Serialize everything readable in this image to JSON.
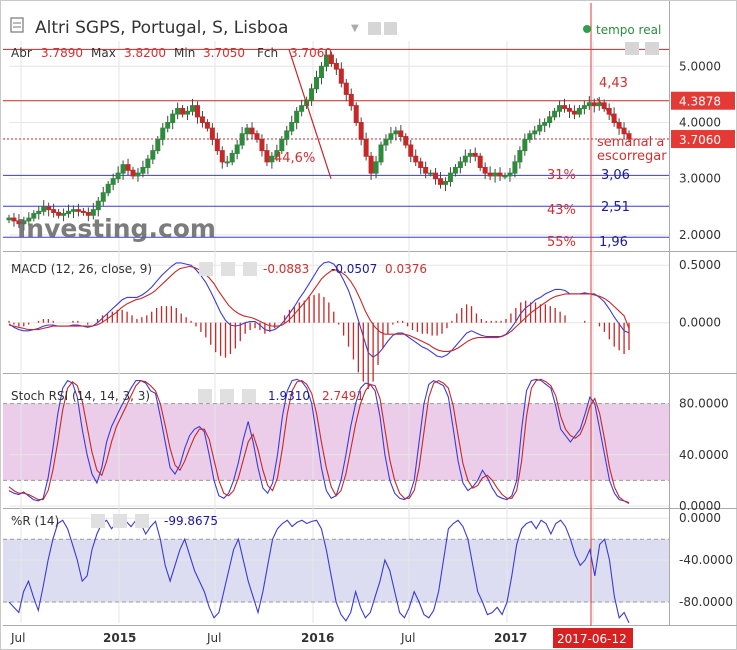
{
  "header": {
    "title": "Altri SGPS, Portugal, S, Lisboa",
    "live_label": "tempo real",
    "ohlc": [
      {
        "label": "Abr",
        "value": "3.7890"
      },
      {
        "label": "Max",
        "value": "3.8200"
      },
      {
        "label": "Min",
        "value": "3.7050"
      },
      {
        "label": "Fch",
        "value": "3.7060"
      }
    ],
    "watermark": "Investing.com"
  },
  "colors": {
    "up": "#2e8b3c",
    "down": "#c62828",
    "accent_red": "#e53935",
    "blue": "#3b3bd6",
    "grid": "#e6e6e6",
    "stoch_band": "#e7c4e6",
    "wr_band": "#d6d6f0"
  },
  "x_axis": {
    "labels": [
      "Jul",
      "2015",
      "Jul",
      "2016",
      "Jul",
      "2017",
      "2017-06-12"
    ],
    "current_date": "2017-06-12"
  },
  "chart_data": [
    {
      "type": "candlestick",
      "name": "price",
      "ylim": [
        1.75,
        5.45
      ],
      "y_ticks": [
        "5.0000",
        "4.0000",
        "3.0000",
        "2.0000"
      ],
      "y_tick_values": [
        5,
        4,
        3,
        2
      ],
      "tag_labels": [
        "4.3878",
        "3.7060"
      ],
      "tag_values": [
        4.3878,
        3.706
      ],
      "last_close": 3.706,
      "horizontal_lines": [
        {
          "value": 5.3,
          "color": "red"
        },
        {
          "value": 4.3878,
          "color": "red"
        },
        {
          "value": 3.06,
          "color": "blue"
        },
        {
          "value": 2.51,
          "color": "blue"
        },
        {
          "value": 1.96,
          "color": "blue"
        }
      ],
      "annotations": [
        {
          "text": "44,6%",
          "color": "red"
        },
        {
          "text": "4,43",
          "color": "red"
        },
        {
          "text": "semanal a",
          "color": "red"
        },
        {
          "text": "escorregar",
          "color": "red"
        },
        {
          "text": "31%",
          "color": "red"
        },
        {
          "text": "3,06",
          "color": "blue"
        },
        {
          "text": "43%",
          "color": "red"
        },
        {
          "text": "2,51",
          "color": "blue"
        },
        {
          "text": "55%",
          "color": "red"
        },
        {
          "text": "1,96",
          "color": "blue"
        }
      ],
      "trendlines": [
        {
          "from": [
            "2015-11",
            5.3
          ],
          "to": [
            "2016-01",
            3.0
          ],
          "color": "red"
        },
        {
          "from": [
            "2017-05",
            4.43
          ],
          "to": [
            "2017-06-12",
            3.706
          ],
          "color": "red"
        }
      ],
      "closes": [
        2.3,
        2.25,
        2.2,
        2.25,
        2.3,
        2.38,
        2.42,
        2.5,
        2.45,
        2.4,
        2.35,
        2.38,
        2.42,
        2.45,
        2.42,
        2.4,
        2.35,
        2.45,
        2.6,
        2.75,
        2.9,
        3.0,
        3.1,
        3.25,
        3.15,
        3.05,
        3.1,
        3.2,
        3.35,
        3.5,
        3.7,
        3.9,
        4.0,
        4.15,
        4.25,
        4.15,
        4.2,
        4.3,
        4.1,
        4.0,
        3.9,
        3.7,
        3.5,
        3.3,
        3.3,
        3.45,
        3.6,
        3.8,
        3.9,
        3.8,
        3.7,
        3.5,
        3.3,
        3.4,
        3.5,
        3.7,
        3.85,
        4.0,
        4.2,
        4.3,
        4.4,
        4.6,
        4.8,
        5.0,
        5.2,
        5.05,
        4.95,
        4.7,
        4.5,
        4.3,
        4.0,
        3.7,
        3.4,
        3.1,
        3.3,
        3.6,
        3.7,
        3.8,
        3.85,
        3.75,
        3.6,
        3.4,
        3.3,
        3.2,
        3.1,
        3.1,
        3.0,
        2.9,
        2.95,
        3.1,
        3.2,
        3.3,
        3.4,
        3.45,
        3.4,
        3.2,
        3.1,
        3.05,
        3.1,
        3.05,
        3.05,
        3.1,
        3.3,
        3.5,
        3.7,
        3.8,
        3.85,
        3.95,
        4.0,
        4.1,
        4.2,
        4.3,
        4.25,
        4.2,
        4.15,
        4.25,
        4.3,
        4.35,
        4.3,
        4.35,
        4.25,
        4.15,
        4.0,
        3.9,
        3.8,
        3.706
      ]
    },
    {
      "type": "line",
      "name": "MACD",
      "label": "MACD (12, 26, close, 9)",
      "values_text": [
        "-0.0883",
        "-0.0507",
        "0.0376"
      ],
      "ylim": [
        -0.42,
        0.58
      ],
      "y_ticks": [
        "0.5000",
        "0.0000"
      ],
      "y_tick_values": [
        0.5,
        0.0
      ],
      "series": [
        {
          "color": "blue",
          "values": [
            -0.01,
            -0.04,
            -0.06,
            -0.07,
            -0.07,
            -0.06,
            -0.05,
            -0.03,
            -0.02,
            -0.02,
            -0.03,
            -0.03,
            -0.03,
            -0.02,
            -0.02,
            -0.03,
            -0.04,
            -0.03,
            0.0,
            0.04,
            0.08,
            0.12,
            0.16,
            0.2,
            0.22,
            0.22,
            0.22,
            0.24,
            0.27,
            0.31,
            0.36,
            0.41,
            0.45,
            0.49,
            0.52,
            0.52,
            0.51,
            0.5,
            0.46,
            0.41,
            0.35,
            0.27,
            0.18,
            0.09,
            0.02,
            -0.02,
            -0.03,
            -0.02,
            0.0,
            0.01,
            0.01,
            -0.02,
            -0.06,
            -0.07,
            -0.06,
            -0.03,
            0.02,
            0.08,
            0.14,
            0.21,
            0.27,
            0.34,
            0.41,
            0.48,
            0.52,
            0.53,
            0.51,
            0.45,
            0.37,
            0.28,
            0.16,
            0.02,
            -0.12,
            -0.26,
            -0.3,
            -0.27,
            -0.22,
            -0.16,
            -0.11,
            -0.09,
            -0.09,
            -0.12,
            -0.15,
            -0.18,
            -0.21,
            -0.23,
            -0.26,
            -0.29,
            -0.3,
            -0.28,
            -0.24,
            -0.19,
            -0.14,
            -0.09,
            -0.07,
            -0.09,
            -0.11,
            -0.12,
            -0.12,
            -0.12,
            -0.12,
            -0.1,
            -0.05,
            0.01,
            0.08,
            0.13,
            0.16,
            0.2,
            0.22,
            0.25,
            0.27,
            0.29,
            0.29,
            0.28,
            0.25,
            0.25,
            0.25,
            0.26,
            0.25,
            0.25,
            0.22,
            0.18,
            0.12,
            0.05,
            -0.01,
            -0.07,
            -0.0883
          ]
        },
        {
          "color": "red",
          "values": [
            -0.02,
            -0.03,
            -0.04,
            -0.05,
            -0.06,
            -0.06,
            -0.06,
            -0.05,
            -0.04,
            -0.03,
            -0.03,
            -0.03,
            -0.03,
            -0.03,
            -0.03,
            -0.03,
            -0.03,
            -0.03,
            -0.02,
            0.0,
            0.03,
            0.06,
            0.09,
            0.13,
            0.16,
            0.18,
            0.2,
            0.21,
            0.23,
            0.25,
            0.28,
            0.32,
            0.36,
            0.4,
            0.44,
            0.47,
            0.48,
            0.49,
            0.48,
            0.46,
            0.43,
            0.39,
            0.34,
            0.27,
            0.21,
            0.15,
            0.11,
            0.08,
            0.06,
            0.05,
            0.04,
            0.02,
            0.0,
            -0.02,
            -0.03,
            -0.03,
            -0.02,
            0.01,
            0.05,
            0.1,
            0.15,
            0.2,
            0.26,
            0.32,
            0.38,
            0.42,
            0.45,
            0.46,
            0.44,
            0.41,
            0.36,
            0.29,
            0.2,
            0.1,
            0.02,
            -0.04,
            -0.08,
            -0.1,
            -0.1,
            -0.1,
            -0.1,
            -0.1,
            -0.11,
            -0.13,
            -0.15,
            -0.17,
            -0.19,
            -0.22,
            -0.24,
            -0.25,
            -0.25,
            -0.24,
            -0.22,
            -0.19,
            -0.16,
            -0.14,
            -0.13,
            -0.13,
            -0.13,
            -0.13,
            -0.13,
            -0.12,
            -0.1,
            -0.07,
            -0.03,
            0.01,
            0.05,
            0.09,
            0.12,
            0.15,
            0.18,
            0.21,
            0.23,
            0.24,
            0.25,
            0.25,
            0.25,
            0.25,
            0.25,
            0.25,
            0.24,
            0.23,
            0.21,
            0.18,
            0.14,
            0.1,
            0.06,
            -0.0507
          ]
        }
      ]
    },
    {
      "type": "line",
      "name": "Stoch RSI",
      "label": "Stoch RSI (14, 14, 3, 3)",
      "values_text": [
        "1.9310",
        "2.7491"
      ],
      "ylim": [
        0,
        100
      ],
      "y_ticks": [
        "80.0000",
        "40.0000",
        "0.0000"
      ],
      "y_tick_values": [
        80,
        40,
        0
      ],
      "band": [
        20,
        80
      ],
      "series": [
        {
          "color": "blue",
          "values": [
            12,
            10,
            9,
            11,
            8,
            5,
            4,
            6,
            22,
            45,
            72,
            92,
            98,
            96,
            85,
            60,
            40,
            25,
            18,
            30,
            50,
            62,
            70,
            78,
            85,
            92,
            98,
            98,
            96,
            90,
            88,
            70,
            50,
            30,
            25,
            32,
            45,
            55,
            60,
            62,
            58,
            40,
            20,
            8,
            6,
            10,
            20,
            34,
            52,
            66,
            50,
            30,
            14,
            10,
            18,
            40,
            70,
            90,
            98,
            99,
            97,
            92,
            80,
            55,
            30,
            12,
            6,
            8,
            20,
            40,
            62,
            80,
            92,
            96,
            95,
            90,
            70,
            40,
            20,
            10,
            6,
            5,
            8,
            20,
            50,
            80,
            95,
            98,
            96,
            94,
            85,
            60,
            35,
            18,
            12,
            15,
            20,
            28,
            22,
            14,
            8,
            6,
            5,
            8,
            20,
            60,
            90,
            98,
            99,
            98,
            95,
            92,
            78,
            60,
            55,
            50,
            55,
            60,
            72,
            85,
            80,
            60,
            40,
            20,
            10,
            5,
            4,
            1.931
          ]
        },
        {
          "color": "red",
          "values": [
            15,
            12,
            10,
            10,
            9,
            7,
            5,
            5,
            12,
            28,
            50,
            75,
            92,
            97,
            94,
            82,
            62,
            42,
            28,
            24,
            35,
            50,
            62,
            70,
            78,
            86,
            94,
            98,
            97,
            94,
            90,
            80,
            63,
            45,
            32,
            28,
            35,
            45,
            54,
            60,
            60,
            52,
            36,
            20,
            10,
            8,
            12,
            22,
            36,
            50,
            56,
            44,
            28,
            16,
            12,
            22,
            45,
            72,
            90,
            97,
            98,
            95,
            88,
            72,
            50,
            30,
            15,
            8,
            12,
            25,
            44,
            64,
            80,
            90,
            95,
            94,
            84,
            60,
            36,
            20,
            10,
            6,
            6,
            12,
            30,
            58,
            85,
            96,
            98,
            96,
            92,
            78,
            55,
            33,
            20,
            14,
            16,
            22,
            24,
            20,
            14,
            9,
            6,
            6,
            12,
            35,
            70,
            92,
            98,
            99,
            97,
            94,
            86,
            70,
            60,
            55,
            53,
            56,
            65,
            78,
            84,
            72,
            52,
            30,
            15,
            7,
            4,
            2.7491
          ]
        }
      ]
    },
    {
      "type": "line",
      "name": "%R",
      "label": "%R (14)",
      "values_text": [
        "-99.8675"
      ],
      "ylim": [
        -100,
        5
      ],
      "y_ticks": [
        "0.0000",
        "-40.0000",
        "-80.0000"
      ],
      "y_tick_values": [
        0,
        -40,
        -80
      ],
      "band": [
        -80,
        -20
      ],
      "series": [
        {
          "color": "blue",
          "values": [
            -80,
            -85,
            -90,
            -70,
            -60,
            -75,
            -88,
            -65,
            -40,
            -20,
            -5,
            -2,
            -10,
            -25,
            -40,
            -60,
            -55,
            -30,
            -15,
            -5,
            -2,
            -10,
            -5,
            -2,
            -3,
            -8,
            -2,
            -5,
            -15,
            -8,
            -3,
            -20,
            -45,
            -60,
            -45,
            -30,
            -20,
            -35,
            -50,
            -60,
            -70,
            -85,
            -95,
            -90,
            -70,
            -50,
            -30,
            -20,
            -40,
            -60,
            -75,
            -90,
            -70,
            -45,
            -20,
            -10,
            -5,
            -2,
            -8,
            -4,
            -2,
            -5,
            -3,
            -2,
            -10,
            -30,
            -55,
            -80,
            -92,
            -98,
            -90,
            -70,
            -85,
            -95,
            -90,
            -75,
            -60,
            -40,
            -50,
            -70,
            -90,
            -95,
            -85,
            -70,
            -80,
            -92,
            -95,
            -88,
            -70,
            -40,
            -10,
            -5,
            -2,
            -8,
            -20,
            -45,
            -70,
            -80,
            -92,
            -90,
            -85,
            -92,
            -80,
            -55,
            -25,
            -10,
            -5,
            -3,
            -10,
            -2,
            -5,
            -15,
            -5,
            -2,
            -8,
            -20,
            -35,
            -45,
            -40,
            -30,
            -55,
            -25,
            -20,
            -40,
            -75,
            -95,
            -90,
            -99.8675
          ]
        }
      ]
    }
  ]
}
